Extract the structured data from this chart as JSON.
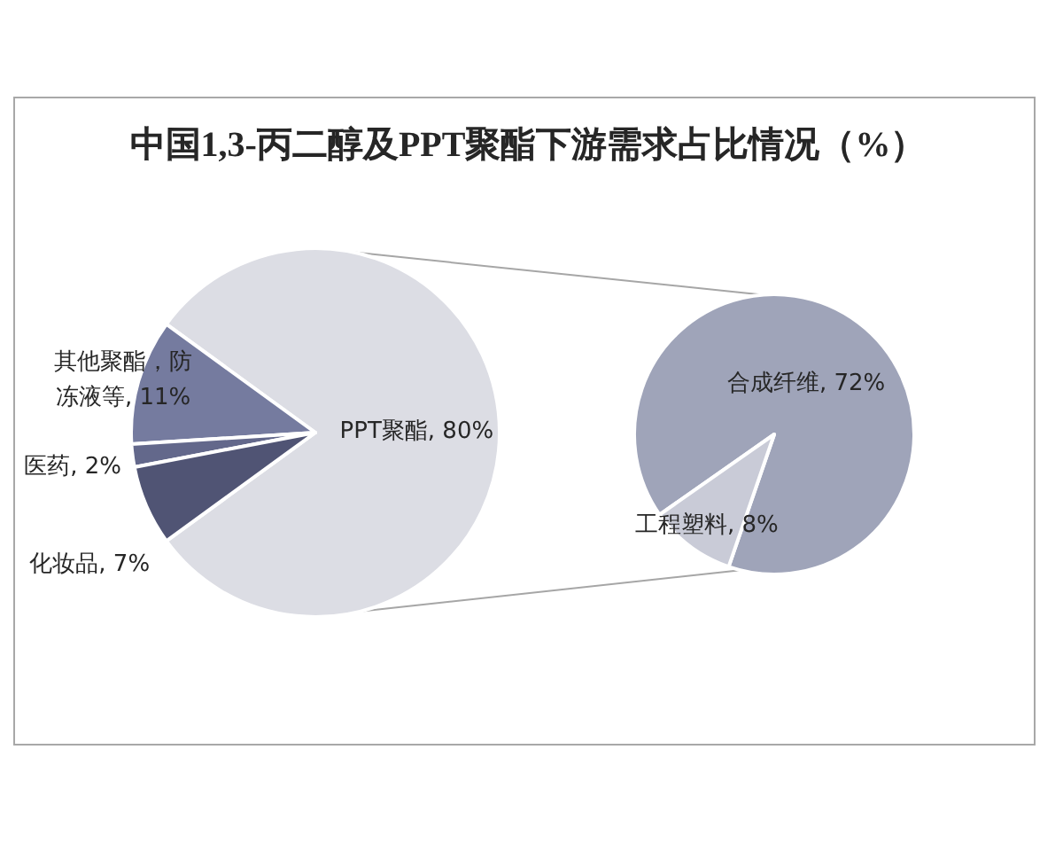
{
  "chart_data": [
    {
      "type": "pie",
      "title": "中国1,3-丙二醇及PPT聚酯下游需求占比情况（%）",
      "categories": [
        "PPT聚酯",
        "其他聚酯，防冻液等",
        "医药",
        "化妆品"
      ],
      "values": [
        80,
        11,
        2,
        7
      ],
      "value_labels": [
        "80%",
        "11%",
        "2%",
        "7%"
      ],
      "colors": [
        "#dcdde4",
        "#757b9f",
        "#63688b",
        "#505474"
      ]
    },
    {
      "type": "pie",
      "categories": [
        "合成纤维",
        "工程塑料"
      ],
      "values": [
        72,
        8
      ],
      "value_labels": [
        "72%",
        "8%"
      ],
      "colors": [
        "#9fa4b9",
        "#c9cbd7"
      ]
    }
  ]
}
